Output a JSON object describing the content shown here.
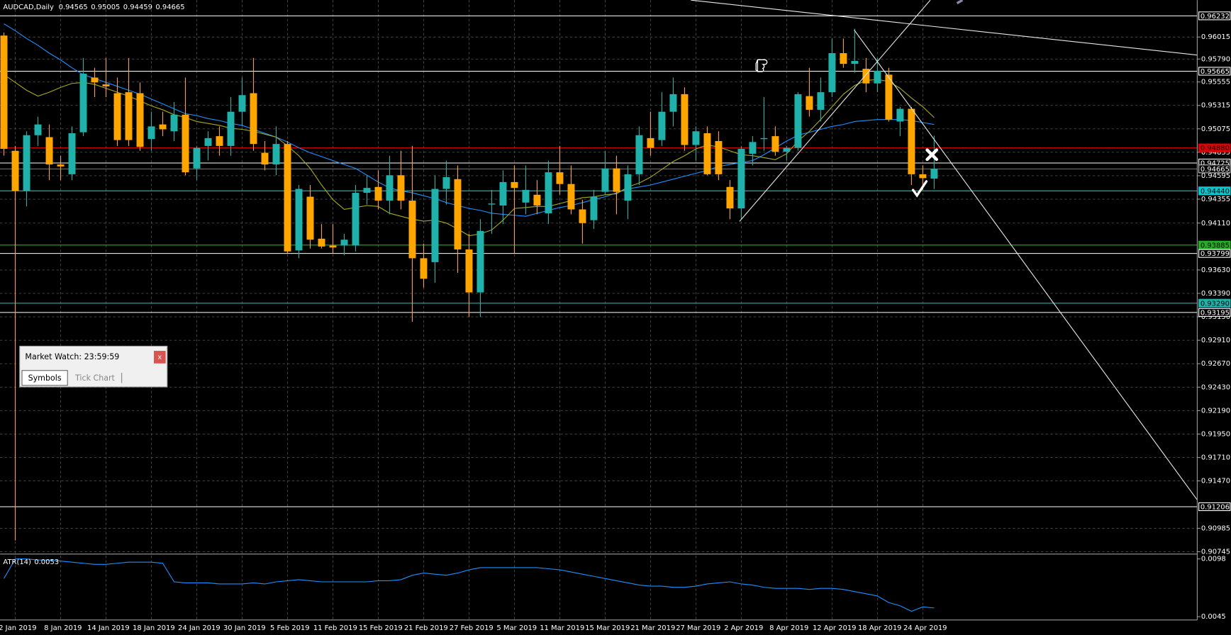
{
  "chart_data": [
    {
      "type": "candlestick",
      "title": "AUDCAD,Daily",
      "categories": [
        null,
        "2 Jan 2019",
        null,
        null,
        null,
        "8 Jan 2019",
        null,
        null,
        null,
        "14 Jan 2019",
        null,
        null,
        null,
        "18 Jan 2019",
        null,
        null,
        null,
        "24 Jan 2019",
        null,
        null,
        null,
        "30 Jan 2019",
        null,
        null,
        null,
        "5 Feb 2019",
        null,
        null,
        null,
        "11 Feb 2019",
        null,
        null,
        null,
        "15 Feb 2019",
        null,
        null,
        null,
        "21 Feb 2019",
        null,
        null,
        null,
        "27 Feb 2019",
        null,
        null,
        null,
        "5 Mar 2019",
        null,
        null,
        null,
        "11 Mar 2019",
        null,
        null,
        null,
        "15 Mar 2019",
        null,
        null,
        null,
        "21 Mar 2019",
        null,
        null,
        null,
        "27 Mar 2019",
        null,
        null,
        null,
        "2 Apr 2019",
        null,
        null,
        null,
        "8 Apr 2019",
        null,
        null,
        null,
        "12 Apr 2019",
        null,
        null,
        null,
        "18 Apr 2019",
        null,
        null,
        null,
        "24 Apr 2019",
        null
      ],
      "open": [
        0.9603,
        0.9485,
        0.9444,
        0.9501,
        0.9499,
        0.9471,
        0.9461,
        0.9504,
        0.956,
        0.9553,
        0.9544,
        0.9545,
        0.9544,
        0.9497,
        0.9512,
        0.9505,
        0.9522,
        0.9467,
        0.949,
        0.95,
        0.949,
        0.9525,
        0.9544,
        0.9483,
        0.9471,
        0.9492,
        0.9383,
        0.9438,
        0.9395,
        0.9388,
        0.9388,
        0.9388,
        0.9442,
        0.9448,
        0.9434,
        0.946,
        0.9434,
        0.9375,
        0.9371,
        0.9446,
        0.9456,
        0.9384,
        0.934,
        0.943,
        0.9429,
        0.9453,
        0.9432,
        0.944,
        0.9421,
        0.9463,
        0.9451,
        0.9425,
        0.9414,
        0.9443,
        0.9467,
        0.9434,
        0.9461,
        0.9498,
        0.9496,
        0.9525,
        0.9543,
        0.9491,
        0.9503,
        0.9495,
        0.9448,
        0.9426,
        0.9482,
        0.9497,
        0.95,
        0.9484,
        0.9488,
        0.9541,
        0.9527,
        0.9545,
        0.9585,
        0.9574,
        0.9569,
        0.9554,
        0.9563,
        0.9515,
        0.9528,
        0.9461,
        0.94565
      ],
      "high": [
        0.9606,
        0.949,
        0.9505,
        0.952,
        0.9512,
        0.948,
        0.951,
        0.958,
        0.957,
        0.958,
        0.956,
        0.958,
        0.9555,
        0.9525,
        0.9525,
        0.9535,
        0.956,
        0.949,
        0.9505,
        0.951,
        0.954,
        0.956,
        0.958,
        0.9495,
        0.951,
        0.9495,
        0.945,
        0.945,
        0.941,
        0.941,
        0.94,
        0.945,
        0.946,
        0.9465,
        0.948,
        0.9485,
        0.949,
        0.939,
        0.946,
        0.9475,
        0.947,
        0.94,
        0.9415,
        0.9445,
        0.9465,
        0.947,
        0.947,
        0.9455,
        0.9475,
        0.949,
        0.947,
        0.9435,
        0.9445,
        0.9485,
        0.948,
        0.947,
        0.951,
        0.9525,
        0.9545,
        0.956,
        0.955,
        0.951,
        0.951,
        0.9505,
        0.9455,
        0.949,
        0.95,
        0.954,
        0.951,
        0.949,
        0.9545,
        0.957,
        0.956,
        0.96,
        0.96,
        0.961,
        0.958,
        0.958,
        0.957,
        0.953,
        0.953,
        0.947,
        0.95005
      ],
      "low": [
        0.948,
        0.9086,
        0.9428,
        0.949,
        0.9455,
        0.9455,
        0.9455,
        0.95,
        0.954,
        0.954,
        0.949,
        0.949,
        0.9485,
        0.9485,
        0.95,
        0.9495,
        0.946,
        0.9455,
        0.9475,
        0.948,
        0.948,
        0.951,
        0.9485,
        0.9465,
        0.946,
        0.938,
        0.9375,
        0.9385,
        0.9385,
        0.938,
        0.9378,
        0.9382,
        0.943,
        0.9425,
        0.942,
        0.9425,
        0.931,
        0.9345,
        0.935,
        0.943,
        0.936,
        0.9315,
        0.9315,
        0.94,
        0.941,
        0.938,
        0.942,
        0.942,
        0.941,
        0.944,
        0.942,
        0.939,
        0.9405,
        0.944,
        0.942,
        0.9415,
        0.945,
        0.948,
        0.949,
        0.951,
        0.9485,
        0.9475,
        0.946,
        0.9455,
        0.9415,
        0.9415,
        0.947,
        0.9485,
        0.948,
        0.9475,
        0.9485,
        0.952,
        0.9515,
        0.954,
        0.957,
        0.9565,
        0.9545,
        0.9545,
        0.9515,
        0.95,
        0.945,
        0.9445,
        0.94459
      ],
      "close": [
        0.9487,
        0.9444,
        0.9501,
        0.9512,
        0.9471,
        0.9469,
        0.9503,
        0.9564,
        0.9555,
        0.9551,
        0.9496,
        0.9496,
        0.9489,
        0.951,
        0.9507,
        0.9522,
        0.9463,
        0.9488,
        0.9498,
        0.949,
        0.9525,
        0.9542,
        0.9492,
        0.9471,
        0.9492,
        0.9382,
        0.9446,
        0.9394,
        0.9387,
        0.9386,
        0.9394,
        0.9442,
        0.9447,
        0.9434,
        0.946,
        0.9434,
        0.9375,
        0.9354,
        0.9446,
        0.9458,
        0.9384,
        0.934,
        0.9403,
        0.9431,
        0.9453,
        0.9447,
        0.9445,
        0.9429,
        0.9463,
        0.9451,
        0.9425,
        0.9411,
        0.9438,
        0.9467,
        0.9443,
        0.9461,
        0.9501,
        0.9488,
        0.9525,
        0.9543,
        0.9491,
        0.9505,
        0.9461,
        0.9461,
        0.9426,
        0.9487,
        0.9494,
        0.9498,
        0.9484,
        0.9488,
        0.9543,
        0.9527,
        0.9545,
        0.9585,
        0.9574,
        0.9577,
        0.9554,
        0.9567,
        0.9517,
        0.9528,
        0.9461,
        0.9457,
        0.94665
      ],
      "up_color": "#20b2aa",
      "down_color": "#ffa500",
      "overlays": [
        {
          "color": "#1e90ff",
          "values": [
            0.9615,
            0.9608,
            0.96,
            0.9593,
            0.9585,
            0.9578,
            0.957,
            0.9563,
            0.9559,
            0.9555,
            0.9551,
            0.9547,
            0.9543,
            0.9538,
            0.9533,
            0.9528,
            0.9523,
            0.9521,
            0.9518,
            0.9516,
            0.9513,
            0.9511,
            0.9507,
            0.9503,
            0.9499,
            0.9494,
            0.9488,
            0.9483,
            0.9479,
            0.9475,
            0.9471,
            0.9467,
            0.946,
            0.9453,
            0.9447,
            0.9444,
            0.9442,
            0.9439,
            0.9436,
            0.9432,
            0.9429,
            0.9426,
            0.9424,
            0.9421,
            0.942,
            0.9419,
            0.9418,
            0.9421,
            0.9424,
            0.9427,
            0.9429,
            0.9432,
            0.9435,
            0.9438,
            0.9442,
            0.9446,
            0.9448,
            0.945,
            0.9453,
            0.9456,
            0.9459,
            0.9462,
            0.9465,
            0.9469,
            0.9471,
            0.9473,
            0.9475,
            0.9481,
            0.9488,
            0.9495,
            0.9501,
            0.9504,
            0.9507,
            0.951,
            0.9512,
            0.9515,
            0.9516,
            0.9517,
            0.9517,
            0.9517,
            0.9516,
            0.9514,
            0.9512
          ]
        },
        {
          "color": "#a8a820",
          "values": [
            0.9563,
            0.9555,
            0.9547,
            0.9541,
            0.9545,
            0.955,
            0.9554,
            0.9555,
            0.9553,
            0.9549,
            0.9545,
            0.9541,
            0.9536,
            0.9531,
            0.9527,
            0.9522,
            0.9519,
            0.9515,
            0.9513,
            0.9511,
            0.9508,
            0.9507,
            0.9505,
            0.9502,
            0.9499,
            0.949,
            0.948,
            0.9467,
            0.945,
            0.9435,
            0.9425,
            0.9427,
            0.9429,
            0.9428,
            0.9421,
            0.9418,
            0.9415,
            0.9413,
            0.9414,
            0.9411,
            0.9405,
            0.9398,
            0.94,
            0.9404,
            0.9414,
            0.9426,
            0.9427,
            0.9428,
            0.9428,
            0.9431,
            0.9434,
            0.9437,
            0.9438,
            0.944,
            0.9441,
            0.9448,
            0.9452,
            0.9458,
            0.9466,
            0.9474,
            0.948,
            0.9487,
            0.9491,
            0.9489,
            0.9485,
            0.9481,
            0.948,
            0.9478,
            0.9476,
            0.9482,
            0.9495,
            0.9505,
            0.9517,
            0.953,
            0.9543,
            0.9552,
            0.9557,
            0.9558,
            0.9556,
            0.9549,
            0.9539,
            0.953,
            0.9519
          ]
        }
      ],
      "levels": [
        {
          "value": 0.96232,
          "color": "#ffffff"
        },
        {
          "value": 0.95665,
          "color": "#ffffff"
        },
        {
          "value": 0.9488,
          "label": "0.94880",
          "color": "#e00000"
        },
        {
          "value": 0.94725,
          "color": "#ffffff"
        },
        {
          "value": 0.9444,
          "label": "0.94440",
          "color": "#00c8d0"
        },
        {
          "value": 0.93885,
          "color": "#22b022"
        },
        {
          "value": 0.93799,
          "color": "#ffffff"
        },
        {
          "value": 0.9329,
          "label": "0.93290",
          "color": "#20b2aa"
        },
        {
          "value": 0.93195,
          "color": "#ffffff"
        },
        {
          "value": 0.91206,
          "color": "#ffffff"
        }
      ],
      "ylim": [
        0.90729,
        0.96393
      ],
      "yticks": [
        0.96015,
        {
          "value": 0.9579,
          "label": "0.95790"
        },
        0.95555,
        0.95315,
        0.95075,
        0.94835,
        0.94595,
        0.94355,
        {
          "value": 0.9411,
          "label": "0.94110"
        },
        {
          "value": 0.9363,
          "label": "0.93630"
        },
        {
          "value": 0.9339,
          "label": "0.93390"
        },
        {
          "value": 0.9315,
          "label": "0.93150"
        },
        {
          "value": 0.9291,
          "label": "0.92910"
        },
        {
          "value": 0.9267,
          "label": "0.92670"
        },
        {
          "value": 0.9243,
          "label": "0.92430"
        },
        {
          "value": 0.9219,
          "label": "0.92190"
        },
        {
          "value": 0.9195,
          "label": "0.91950"
        },
        {
          "value": 0.9171,
          "label": "0.91710"
        },
        {
          "value": 0.9147,
          "label": "0.91470"
        },
        0.90985,
        0.90745
      ],
      "grid": true
    },
    {
      "type": "line",
      "title": "ATR(14)",
      "color": "#1e90ff",
      "values": [
        0.008,
        0.0098,
        0.0098,
        0.0097,
        0.0097,
        0.0096,
        0.0095,
        0.0094,
        0.0093,
        0.0093,
        0.0094,
        0.0095,
        0.0095,
        0.0095,
        0.0094,
        0.0077,
        0.0076,
        0.0076,
        0.0076,
        0.0075,
        0.0075,
        0.0075,
        0.0076,
        0.0075,
        0.0077,
        0.0078,
        0.0079,
        0.0078,
        0.0077,
        0.0077,
        0.0077,
        0.0077,
        0.0077,
        0.0078,
        0.0078,
        0.0079,
        0.0083,
        0.0085,
        0.0084,
        0.0083,
        0.0085,
        0.0088,
        0.009,
        0.009,
        0.009,
        0.009,
        0.009,
        0.009,
        0.0089,
        0.0088,
        0.0086,
        0.0084,
        0.0082,
        0.008,
        0.0078,
        0.0076,
        0.0074,
        0.0073,
        0.0073,
        0.0072,
        0.0072,
        0.0073,
        0.0075,
        0.0076,
        0.0077,
        0.0075,
        0.0074,
        0.0072,
        0.0071,
        0.0071,
        0.0071,
        0.007,
        0.0071,
        0.0071,
        0.007,
        0.0068,
        0.0066,
        0.0064,
        0.0058,
        0.0055,
        0.005,
        0.0054,
        0.0053
      ],
      "ylim": [
        0.0042,
        0.0101
      ],
      "yticks": [
        0.0098,
        0.0045
      ]
    }
  ],
  "window": {
    "title": "Market Watch: 23:59:59",
    "close": "x",
    "tabs": [
      "Symbols",
      "Tick Chart"
    ]
  }
}
